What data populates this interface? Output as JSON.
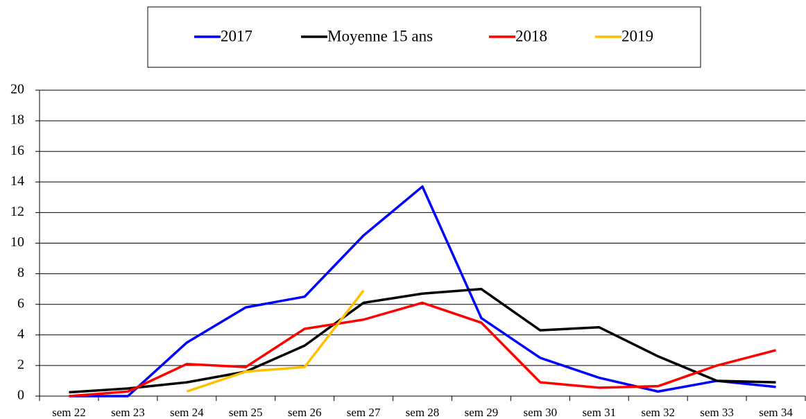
{
  "chart_data": {
    "type": "line",
    "categories": [
      "sem 22",
      "sem 23",
      "sem 24",
      "sem 25",
      "sem 26",
      "sem 27",
      "sem 28",
      "sem 29",
      "sem 30",
      "sem 31",
      "sem 32",
      "sem 33",
      "sem 34"
    ],
    "series": [
      {
        "name": "2017",
        "color": "#0000ff",
        "values": [
          0,
          0,
          3.5,
          5.8,
          6.5,
          10.5,
          13.7,
          5.1,
          2.5,
          1.2,
          0.3,
          1.0,
          0.6
        ]
      },
      {
        "name": "Moyenne 15 ans",
        "color": "#000000",
        "values": [
          0.25,
          0.5,
          0.9,
          1.6,
          3.3,
          6.1,
          6.7,
          7.0,
          4.3,
          4.5,
          2.6,
          1.0,
          0.9
        ]
      },
      {
        "name": "2018",
        "color": "#ff0000",
        "values": [
          0,
          0.3,
          2.1,
          1.9,
          4.4,
          5.0,
          6.1,
          4.8,
          0.9,
          0.55,
          0.65,
          2.0,
          3.0
        ]
      },
      {
        "name": "2019",
        "color": "#ffc000",
        "values": [
          null,
          null,
          0.3,
          1.6,
          1.9,
          6.9,
          null,
          null,
          null,
          null,
          null,
          null,
          null
        ]
      }
    ],
    "ylim": [
      0,
      20
    ],
    "yticks": [
      0,
      2,
      4,
      6,
      8,
      10,
      12,
      14,
      16,
      18,
      20
    ],
    "grid": true,
    "legend": "top"
  }
}
